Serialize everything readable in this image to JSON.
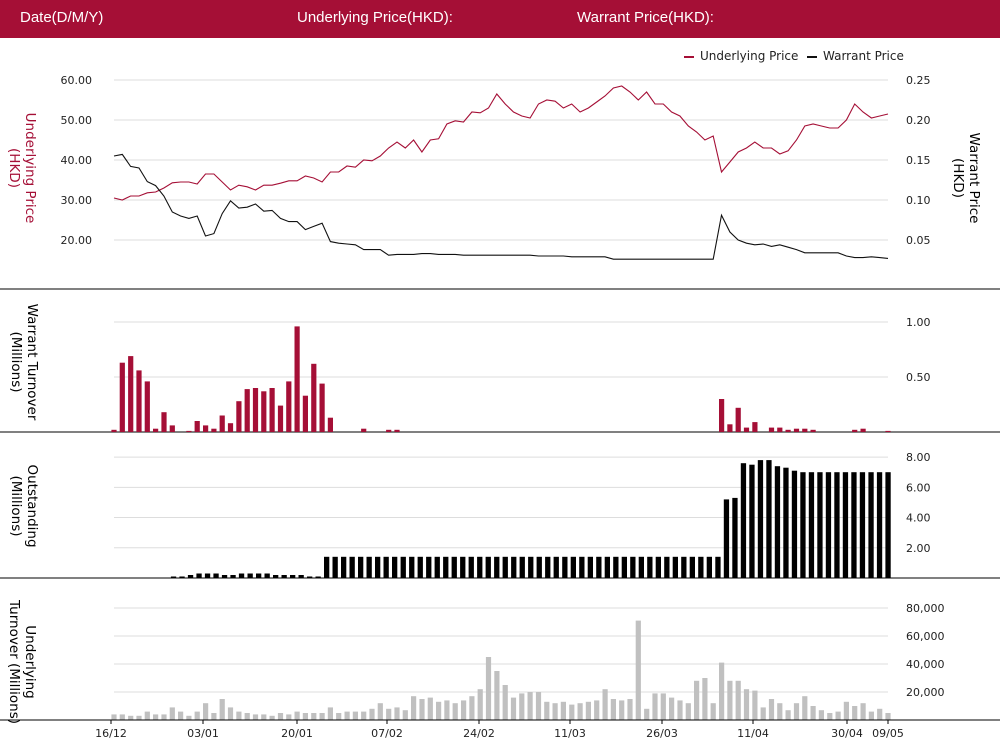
{
  "header": {
    "date_label": "Date(D/M/Y)",
    "underlying_label": "Underlying Price(HKD):",
    "warrant_label": "Warrant Price(HKD):"
  },
  "colors": {
    "header_bg": "#a50f36",
    "underlying": "#a50f36",
    "warrant": "#111111",
    "outstanding": "#000000",
    "underlying_turnover": "#c0c0c0",
    "grid": "#dddddd"
  },
  "chart_data": [
    {
      "type": "line",
      "legend": [
        "Underlying Price",
        "Warrant Price"
      ],
      "legend_position": "top-right",
      "ylabel_left": "Underlying Price (HKD)",
      "ylabel_right": "Warrant  Price (HKD)",
      "y_left_ticks": [
        "60.00",
        "50.00",
        "40.00",
        "30.00",
        "20.00"
      ],
      "y_left_range": [
        10,
        60
      ],
      "y_right_ticks": [
        "0.25",
        "0.20",
        "0.15",
        "0.10",
        "0.05"
      ],
      "y_right_range": [
        0,
        0.25
      ],
      "series": [
        {
          "name": "Underlying Price",
          "axis": "left",
          "values": [
            30.5,
            30.0,
            31.0,
            31.0,
            31.8,
            32.0,
            33.0,
            34.3,
            34.5,
            34.5,
            34.0,
            36.5,
            36.5,
            34.5,
            32.5,
            33.7,
            33.3,
            32.5,
            33.7,
            33.7,
            34.2,
            34.8,
            34.8,
            36.0,
            35.5,
            34.5,
            37.0,
            37.0,
            38.5,
            38.2,
            40.0,
            39.8,
            41.0,
            43.0,
            44.5,
            43.0,
            45.0,
            42.0,
            45.0,
            45.3,
            49.0,
            49.8,
            49.5,
            52.0,
            51.8,
            53.0,
            56.5,
            54.0,
            52.0,
            51.0,
            50.5,
            54.0,
            55.0,
            54.7,
            53.0,
            54.0,
            52.0,
            53.0,
            54.5,
            56.0,
            58.0,
            58.5,
            57.0,
            55.0,
            57.0,
            54.0,
            54.0,
            52.0,
            51.0,
            48.5,
            47.0,
            45.0,
            46.0,
            37.0,
            39.5,
            42.0,
            43.0,
            44.5,
            43.0,
            43.0,
            41.5,
            42.3,
            45.0,
            48.5,
            49.0,
            48.5,
            48.0,
            48.0,
            50.0,
            54.0,
            52.0,
            50.5,
            51.0,
            51.5
          ]
        },
        {
          "name": "Warrant Price",
          "axis": "right",
          "values": [
            0.155,
            0.157,
            0.142,
            0.14,
            0.123,
            0.118,
            0.105,
            0.085,
            0.08,
            0.077,
            0.08,
            0.055,
            0.058,
            0.083,
            0.099,
            0.09,
            0.091,
            0.095,
            0.086,
            0.087,
            0.077,
            0.073,
            0.073,
            0.063,
            0.067,
            0.071,
            0.048,
            0.046,
            0.045,
            0.044,
            0.038,
            0.038,
            0.038,
            0.031,
            0.032,
            0.032,
            0.032,
            0.033,
            0.033,
            0.032,
            0.032,
            0.032,
            0.031,
            0.031,
            0.031,
            0.031,
            0.031,
            0.031,
            0.031,
            0.031,
            0.031,
            0.03,
            0.03,
            0.03,
            0.03,
            0.029,
            0.029,
            0.029,
            0.029,
            0.029,
            0.026,
            0.026,
            0.026,
            0.026,
            0.026,
            0.026,
            0.026,
            0.026,
            0.026,
            0.026,
            0.026,
            0.026,
            0.026,
            0.081,
            0.06,
            0.05,
            0.046,
            0.044,
            0.045,
            0.042,
            0.044,
            0.041,
            0.038,
            0.034,
            0.034,
            0.034,
            0.034,
            0.034,
            0.03,
            0.028,
            0.028,
            0.029,
            0.028,
            0.027
          ]
        }
      ]
    },
    {
      "type": "bar",
      "ylabel": "Warrant  Turnover (Millions)",
      "y_ticks": [
        "1.00",
        "0.50"
      ],
      "y_range": [
        0,
        1.2
      ],
      "series": [
        {
          "name": "Warrant Turnover",
          "values": [
            0.02,
            0.63,
            0.69,
            0.56,
            0.46,
            0.03,
            0.18,
            0.06,
            0.0,
            0.01,
            0.1,
            0.06,
            0.03,
            0.15,
            0.08,
            0.28,
            0.39,
            0.4,
            0.37,
            0.4,
            0.24,
            0.46,
            0.96,
            0.33,
            0.62,
            0.44,
            0.13,
            0.0,
            0.0,
            0.0,
            0.03,
            0.0,
            0.0,
            0.02,
            0.02,
            0.0,
            0.0,
            0.0,
            0.0,
            0.0,
            0.0,
            0.0,
            0.0,
            0.0,
            0.0,
            0.0,
            0.0,
            0.0,
            0.0,
            0.0,
            0.0,
            0.0,
            0.0,
            0.0,
            0.0,
            0.0,
            0.0,
            0.0,
            0.0,
            0.0,
            0.0,
            0.0,
            0.0,
            0.0,
            0.0,
            0.0,
            0.0,
            0.0,
            0.0,
            0.0,
            0.0,
            0.0,
            0.0,
            0.3,
            0.07,
            0.22,
            0.04,
            0.09,
            0.0,
            0.04,
            0.04,
            0.02,
            0.03,
            0.03,
            0.02,
            0.0,
            0.0,
            0.0,
            0.0,
            0.02,
            0.03,
            0.0,
            0.0,
            0.01
          ]
        }
      ]
    },
    {
      "type": "bar",
      "ylabel": "Outstanding (Millions)",
      "y_ticks": [
        "8.00",
        "6.00",
        "4.00",
        "2.00"
      ],
      "y_range": [
        0,
        9
      ],
      "series": [
        {
          "name": "Outstanding",
          "values": [
            0,
            0,
            0,
            0,
            0,
            0,
            0,
            0.1,
            0.1,
            0.2,
            0.3,
            0.3,
            0.3,
            0.2,
            0.2,
            0.3,
            0.3,
            0.3,
            0.3,
            0.2,
            0.2,
            0.2,
            0.2,
            0.1,
            0.1,
            1.4,
            1.4,
            1.4,
            1.4,
            1.4,
            1.4,
            1.4,
            1.4,
            1.4,
            1.4,
            1.4,
            1.4,
            1.4,
            1.4,
            1.4,
            1.4,
            1.4,
            1.4,
            1.4,
            1.4,
            1.4,
            1.4,
            1.4,
            1.4,
            1.4,
            1.4,
            1.4,
            1.4,
            1.4,
            1.4,
            1.4,
            1.4,
            1.4,
            1.4,
            1.4,
            1.4,
            1.4,
            1.4,
            1.4,
            1.4,
            1.4,
            1.4,
            1.4,
            1.4,
            1.4,
            1.4,
            1.4,
            5.2,
            5.3,
            7.6,
            7.5,
            7.8,
            7.8,
            7.4,
            7.3,
            7.1,
            7.0,
            7.0,
            7.0,
            7.0,
            7.0,
            7.0,
            7.0,
            7.0,
            7.0,
            7.0,
            7.0
          ]
        }
      ]
    },
    {
      "type": "bar",
      "ylabel": "Underlying Turnover (Millions)",
      "y_ticks": [
        "80,000",
        "60,000",
        "40,000",
        "20,000"
      ],
      "y_range": [
        0,
        90000
      ],
      "series": [
        {
          "name": "Underlying Turnover",
          "values": [
            4000,
            4000,
            3000,
            3000,
            6000,
            4000,
            4000,
            9000,
            6000,
            3000,
            6000,
            12000,
            5000,
            15000,
            9000,
            6000,
            5000,
            4000,
            4000,
            3000,
            5000,
            4000,
            6000,
            5000,
            5000,
            5000,
            9000,
            5000,
            6000,
            6000,
            6000,
            8000,
            12000,
            8000,
            9000,
            7000,
            17000,
            15000,
            16000,
            13000,
            14000,
            12000,
            14000,
            17000,
            22000,
            45000,
            35000,
            25000,
            16000,
            19000,
            20000,
            20000,
            13000,
            12000,
            13000,
            11000,
            12000,
            13000,
            14000,
            22000,
            15000,
            14000,
            15000,
            71000,
            8000,
            19000,
            19000,
            16000,
            14000,
            12000,
            28000,
            30000,
            12000,
            41000,
            28000,
            28000,
            22000,
            21000,
            9000,
            15000,
            12000,
            7000,
            12000,
            17000,
            10000,
            7000,
            5000,
            6000,
            13000,
            10000,
            12000,
            6000,
            8000,
            5000
          ]
        }
      ]
    }
  ],
  "x_axis": {
    "tick_labels": [
      "16/12",
      "03/01",
      "20/01",
      "07/02",
      "24/02",
      "11/03",
      "26/03",
      "11/04",
      "30/04",
      "09/05"
    ]
  }
}
